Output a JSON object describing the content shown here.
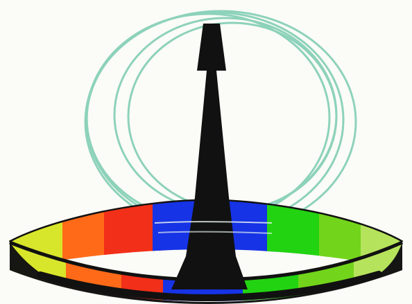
{
  "image": {
    "subject": "dish-antenna-illustration",
    "palette": {
      "background": "#fbfbf7",
      "outline": "#111111",
      "rings": "#88d0b8",
      "yellow": "#d8e62b",
      "orange": "#ff6a18",
      "red": "#f22f18",
      "blue": "#1633e6",
      "green": "#22d311",
      "lime": "#72d51b",
      "pale_green": "#b6e35c"
    }
  }
}
